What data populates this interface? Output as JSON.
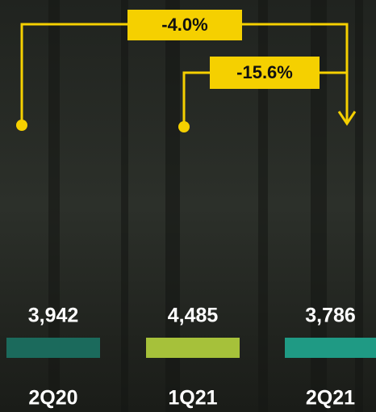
{
  "periods": [
    {
      "label": "2Q20",
      "value": "3,942",
      "color": "#1b6a5c"
    },
    {
      "label": "1Q21",
      "value": "4,485",
      "color": "#a6c13a"
    },
    {
      "label": "2Q21",
      "value": "3,786",
      "color": "#1f9a84"
    }
  ],
  "changes": [
    {
      "label": "-4.0%"
    },
    {
      "label": "-15.6%"
    }
  ]
}
